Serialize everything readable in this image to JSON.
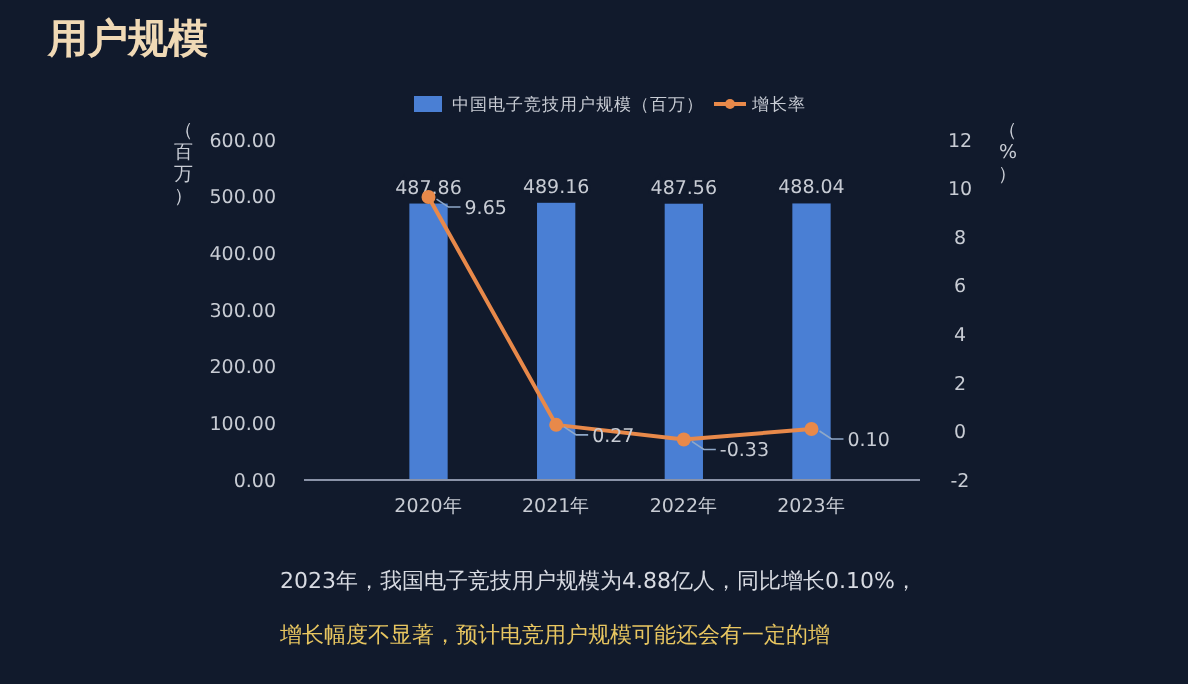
{
  "chart_data": {
    "type": "bar",
    "title": "用户规模",
    "categories": [
      "2020年",
      "2021年",
      "2022年",
      "2023年"
    ],
    "series": [
      {
        "name": "中国电子竞技用户规模（百万）",
        "color": "#4a7fd4",
        "values": [
          487.86,
          489.16,
          487.56,
          488.04
        ],
        "value_labels": [
          "487.86",
          "489.16",
          "487.56",
          "488.04"
        ]
      },
      {
        "name": "增长率",
        "type": "line",
        "axis": "y2",
        "color": "#e8894a",
        "values": [
          9.65,
          0.27,
          -0.33,
          0.1
        ],
        "value_labels": [
          "9.65",
          "0.27",
          "-0.33",
          "0.10"
        ]
      }
    ],
    "ylabel": "（百万）",
    "y2label": "（%）",
    "ylim": [
      0,
      600
    ],
    "yticks": [
      {
        "value": 0,
        "label": "0.00"
      },
      {
        "value": 100,
        "label": "100.00"
      },
      {
        "value": 200,
        "label": "200.00"
      },
      {
        "value": 300,
        "label": "300.00"
      },
      {
        "value": 400,
        "label": "400.00"
      },
      {
        "value": 500,
        "label": "500.00"
      },
      {
        "value": 600,
        "label": "600.00"
      }
    ],
    "y2lim": [
      -2,
      12
    ],
    "y2ticks": [
      -2,
      0,
      2,
      4,
      6,
      8,
      10,
      12
    ],
    "data_labels": true,
    "legend": "top",
    "marker": "circle",
    "line_style": "solid",
    "grid": false,
    "annotations": [
      "2023年，我国电子竞技用户规模为4.88亿人，同比增长0.10%，",
      "增长幅度不显著，预计电竞用户规模可能还会有一定的增"
    ]
  }
}
